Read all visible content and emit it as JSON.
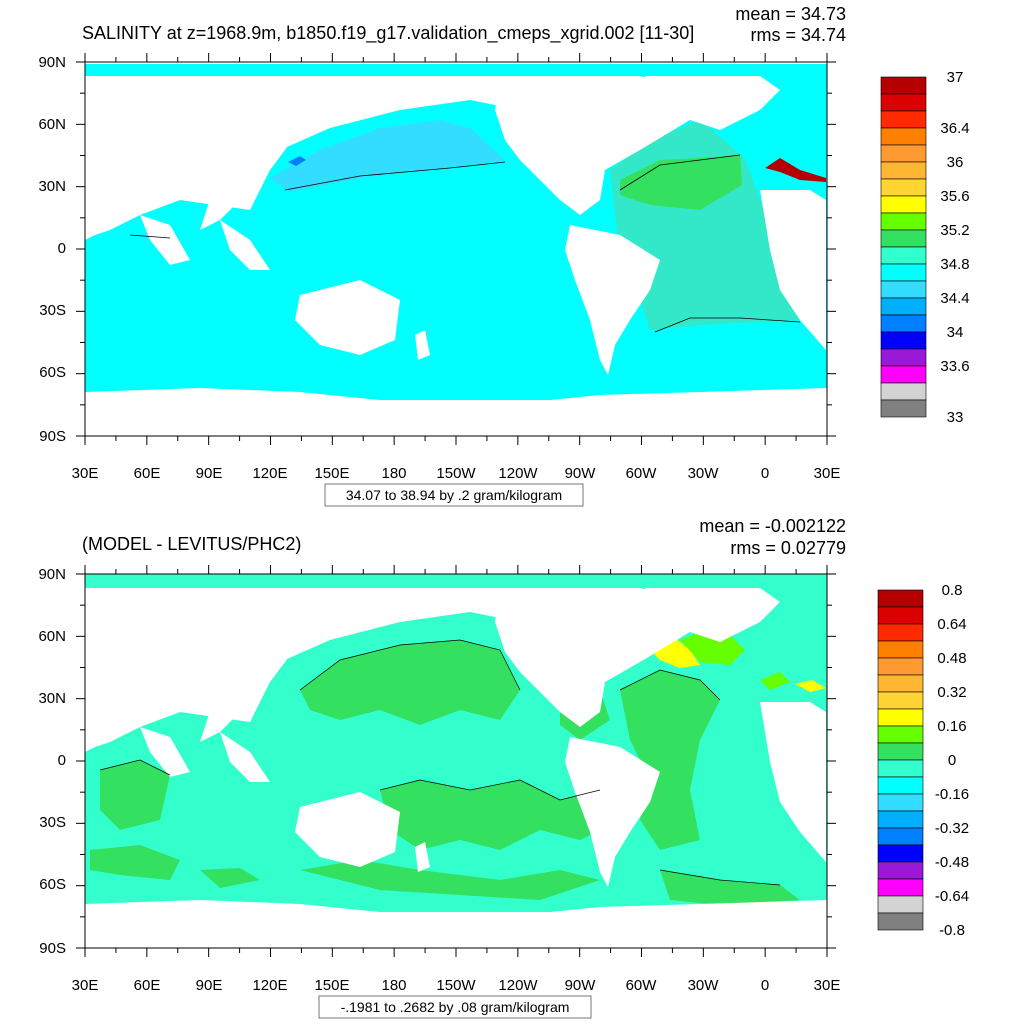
{
  "panels": [
    {
      "title": "SALINITY at z=1968.9m, b1850.f19_g17.validation_cmeps_xgrid.002 [11-30]",
      "stats": {
        "mean": "mean = 34.73",
        "rms": "rms = 34.74"
      },
      "caption": "34.07 to 38.94 by .2 gram/kilogram",
      "y_ticks": [
        "90N",
        "60N",
        "30N",
        "0",
        "30S",
        "60S",
        "90S"
      ],
      "x_ticks": [
        "30E",
        "60E",
        "90E",
        "120E",
        "150E",
        "180",
        "150W",
        "120W",
        "90W",
        "60W",
        "30W",
        "0",
        "30E"
      ],
      "colorbar": {
        "colors": [
          "#b40000",
          "#dd0000",
          "#ff2a00",
          "#ff7f00",
          "#ff9a33",
          "#ffb733",
          "#ffd533",
          "#ffff00",
          "#66ff00",
          "#33e060",
          "#33ffcc",
          "#00ffff",
          "#33ddff",
          "#00b0ff",
          "#0080ff",
          "#0000ff",
          "#9a19d6",
          "#ff00ff",
          "#d3d3d3",
          "#808080"
        ],
        "labels": [
          "37",
          "36.4",
          "36",
          "35.6",
          "35.2",
          "34.8",
          "34.4",
          "34",
          "33.6",
          "33"
        ],
        "label_boundaries": [
          0,
          3,
          5,
          7,
          9,
          11,
          13,
          15,
          17,
          20
        ]
      }
    },
    {
      "title": "(MODEL - LEVITUS/PHC2)",
      "stats": {
        "mean": "mean = -0.002122",
        "rms": "rms = 0.02779"
      },
      "caption": "-.1981 to .2682 by .08 gram/kilogram",
      "y_ticks": [
        "90N",
        "60N",
        "30N",
        "0",
        "30S",
        "60S",
        "90S"
      ],
      "x_ticks": [
        "30E",
        "60E",
        "90E",
        "120E",
        "150E",
        "180",
        "150W",
        "120W",
        "90W",
        "60W",
        "30W",
        "0",
        "30E"
      ],
      "colorbar": {
        "colors": [
          "#b40000",
          "#dd0000",
          "#ff2a00",
          "#ff7f00",
          "#ff9a33",
          "#ffb733",
          "#ffd533",
          "#ffff00",
          "#66ff00",
          "#33e060",
          "#33ffcc",
          "#00ffff",
          "#33ddff",
          "#00b0ff",
          "#0080ff",
          "#0000ff",
          "#9a19d6",
          "#ff00ff",
          "#d3d3d3",
          "#808080"
        ],
        "labels": [
          "0.8",
          "0.64",
          "0.48",
          "0.32",
          "0.16",
          "0",
          "-0.16",
          "-0.32",
          "-0.48",
          "-0.64",
          "-0.8"
        ],
        "label_boundaries": [
          0,
          2,
          4,
          6,
          8,
          10,
          12,
          14,
          16,
          18,
          20
        ]
      }
    }
  ]
}
